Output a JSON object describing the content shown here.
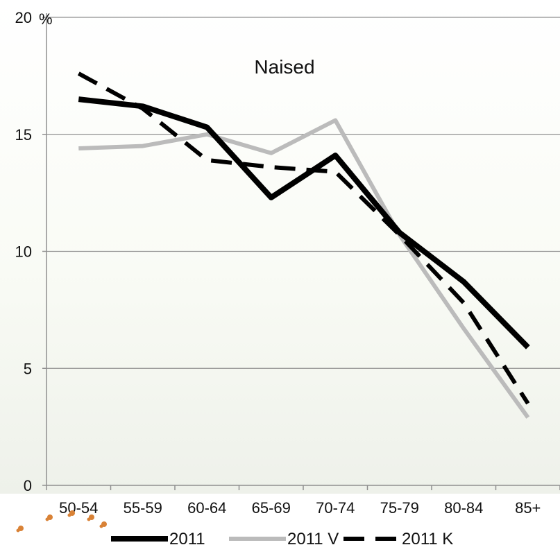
{
  "chart_data": {
    "type": "line",
    "title": "Naised",
    "ylabel": "%",
    "ylim": [
      0,
      20
    ],
    "yticks": [
      "0",
      "5",
      "10",
      "15",
      "20"
    ],
    "categories": [
      "50-54",
      "55-59",
      "60-64",
      "65-69",
      "70-74",
      "75-79",
      "80-84",
      "85+"
    ],
    "grid": true,
    "legend_position": "bottom",
    "series": [
      {
        "name": "2011",
        "values": [
          16.5,
          16.2,
          15.3,
          12.3,
          14.1,
          10.8,
          8.7,
          5.9
        ],
        "color": "#000000",
        "style": "solid",
        "weight": "thick"
      },
      {
        "name": "2011 V",
        "values": [
          14.4,
          14.5,
          15.0,
          14.2,
          15.6,
          10.7,
          6.7,
          2.9
        ],
        "color": "#bbbbbb",
        "style": "solid",
        "weight": "normal"
      },
      {
        "name": "2011 K",
        "values": [
          17.6,
          16.1,
          13.9,
          13.6,
          13.4,
          10.7,
          7.8,
          3.5
        ],
        "color": "#000000",
        "style": "dashed",
        "weight": "normal"
      }
    ]
  },
  "decoration": {
    "icon": "flower-pattern-icon",
    "color": "#d98236"
  }
}
